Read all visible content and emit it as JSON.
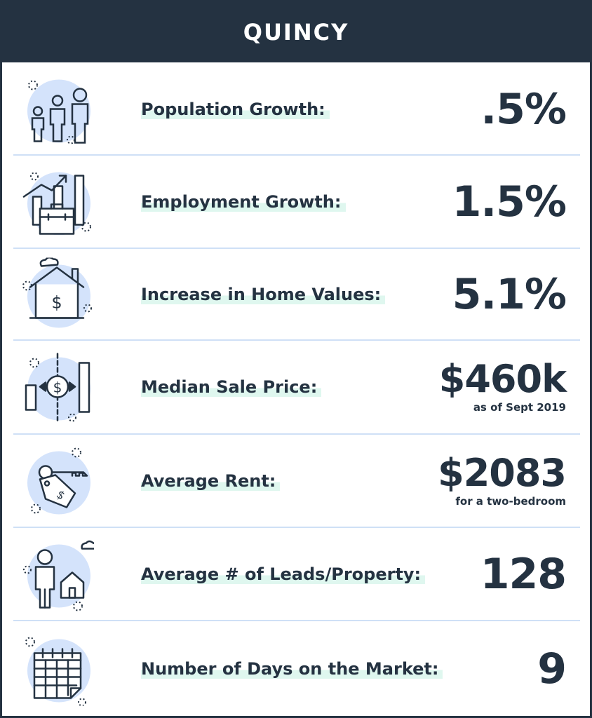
{
  "header": {
    "title": "QUINCY"
  },
  "colors": {
    "dark": "#243241",
    "accent": "#dff7ef",
    "icon_fill": "#d4e3fb",
    "divider": "#cfe0f6"
  },
  "rows": [
    {
      "icon": "family-icon",
      "label": "Population Growth:",
      "value": ".5%",
      "note": ""
    },
    {
      "icon": "briefcase-growth-icon",
      "label": "Employment Growth:",
      "value": "1.5%",
      "note": ""
    },
    {
      "icon": "house-dollar-icon",
      "label": "Increase in Home Values:",
      "value": "5.1%",
      "note": ""
    },
    {
      "icon": "median-price-icon",
      "label": "Median Sale Price:",
      "value": "$460k",
      "note": "as  of Sept 2019"
    },
    {
      "icon": "key-tag-icon",
      "label": "Average Rent:",
      "value": "$2083",
      "note": "for a two-bedroom"
    },
    {
      "icon": "person-house-icon",
      "label": "Average # of Leads/Property:",
      "value": "128",
      "note": ""
    },
    {
      "icon": "calendar-icon",
      "label": "Number of Days on the Market:",
      "value": "9",
      "note": ""
    }
  ]
}
